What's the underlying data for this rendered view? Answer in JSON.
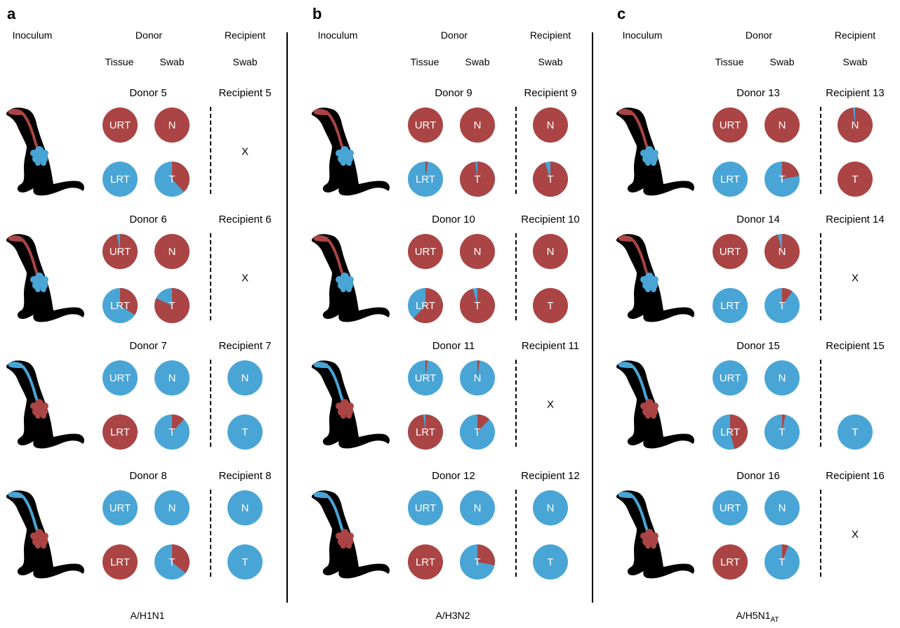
{
  "colors": {
    "red": "#ab4444",
    "blue": "#49a5d5"
  },
  "column_headers": {
    "inoculum": "Inoculum",
    "donor": "Donor",
    "recipient": "Recipient",
    "tissue": "Tissue",
    "swab": "Swab",
    "recipient_swab": "Swab"
  },
  "panels": [
    {
      "letter": "a",
      "virus": "A/H1N1",
      "virus_sub": "",
      "rows": [
        {
          "donor": "Donor 5",
          "recipient": "Recipient 5",
          "inoculum_color": "red",
          "lung_color": "blue",
          "urt": {
            "label": "URT",
            "red": 1.0
          },
          "n": {
            "label": "N",
            "red": 1.0
          },
          "lrt": {
            "label": "LRT",
            "red": 0.0
          },
          "t": {
            "label": "T",
            "red": 0.38
          },
          "rec_n": null,
          "rec_t": null,
          "rec_x": "X"
        },
        {
          "donor": "Donor 6",
          "recipient": "Recipient 6",
          "inoculum_color": "red",
          "lung_color": "blue",
          "urt": {
            "label": "URT",
            "red": 0.97
          },
          "n": {
            "label": "N",
            "red": 1.0
          },
          "lrt": {
            "label": "LRT",
            "red": 0.34
          },
          "t": {
            "label": "T",
            "red": 0.82
          },
          "rec_n": null,
          "rec_t": null,
          "rec_x": "X"
        },
        {
          "donor": "Donor 7",
          "recipient": "Recipient 7",
          "inoculum_color": "blue",
          "lung_color": "red",
          "urt": {
            "label": "URT",
            "red": 0.0
          },
          "n": {
            "label": "N",
            "red": 0.0
          },
          "lrt": {
            "label": "LRT",
            "red": 1.0
          },
          "t": {
            "label": "T",
            "red": 0.12
          },
          "rec_n": {
            "label": "N",
            "red": 0.0
          },
          "rec_t": {
            "label": "T",
            "red": 0.0
          },
          "rec_x": ""
        },
        {
          "donor": "Donor 8",
          "recipient": "Recipient 8",
          "inoculum_color": "blue",
          "lung_color": "red",
          "urt": {
            "label": "URT",
            "red": 0.0
          },
          "n": {
            "label": "N",
            "red": 0.0
          },
          "lrt": {
            "label": "LRT",
            "red": 1.0
          },
          "t": {
            "label": "T",
            "red": 0.36
          },
          "rec_n": {
            "label": "N",
            "red": 0.0
          },
          "rec_t": {
            "label": "T",
            "red": 0.0
          },
          "rec_x": ""
        }
      ]
    },
    {
      "letter": "b",
      "virus": "A/H3N2",
      "virus_sub": "",
      "rows": [
        {
          "donor": "Donor 9",
          "recipient": "Recipient 9",
          "inoculum_color": "red",
          "lung_color": "blue",
          "urt": {
            "label": "URT",
            "red": 1.0
          },
          "n": {
            "label": "N",
            "red": 1.0
          },
          "lrt": {
            "label": "LRT",
            "red": 0.02
          },
          "t": {
            "label": "T",
            "red": 0.98
          },
          "rec_n": {
            "label": "N",
            "red": 1.0
          },
          "rec_t": {
            "label": "T",
            "red": 0.95
          },
          "rec_x": ""
        },
        {
          "donor": "Donor 10",
          "recipient": "Recipient 10",
          "inoculum_color": "red",
          "lung_color": "blue",
          "urt": {
            "label": "URT",
            "red": 1.0
          },
          "n": {
            "label": "N",
            "red": 1.0
          },
          "lrt": {
            "label": "LRT",
            "red": 0.62
          },
          "t": {
            "label": "T",
            "red": 0.96
          },
          "rec_n": {
            "label": "N",
            "red": 1.0
          },
          "rec_t": {
            "label": "T",
            "red": 1.0
          },
          "rec_x": ""
        },
        {
          "donor": "Donor 11",
          "recipient": "Recipient 11",
          "inoculum_color": "blue",
          "lung_color": "red",
          "urt": {
            "label": "URT",
            "red": 0.02
          },
          "n": {
            "label": "N",
            "red": 0.02
          },
          "lrt": {
            "label": "LRT",
            "red": 0.98
          },
          "t": {
            "label": "T",
            "red": 0.12
          },
          "rec_n": null,
          "rec_t": null,
          "rec_x": "X"
        },
        {
          "donor": "Donor 12",
          "recipient": "Recipient 12",
          "inoculum_color": "blue",
          "lung_color": "red",
          "urt": {
            "label": "URT",
            "red": 0.0
          },
          "n": {
            "label": "N",
            "red": 0.0
          },
          "lrt": {
            "label": "LRT",
            "red": 1.0
          },
          "t": {
            "label": "T",
            "red": 0.28
          },
          "rec_n": {
            "label": "N",
            "red": 0.0
          },
          "rec_t": {
            "label": "T",
            "red": 0.0
          },
          "rec_x": ""
        }
      ]
    },
    {
      "letter": "c",
      "virus": "A/H5N1",
      "virus_sub": "AT",
      "rows": [
        {
          "donor": "Donor 13",
          "recipient": "Recipient 13",
          "inoculum_color": "red",
          "lung_color": "blue",
          "urt": {
            "label": "URT",
            "red": 1.0
          },
          "n": {
            "label": "N",
            "red": 1.0
          },
          "lrt": {
            "label": "LRT",
            "red": 0.0
          },
          "t": {
            "label": "T",
            "red": 0.22
          },
          "rec_n": {
            "label": "N",
            "red": 0.98
          },
          "rec_t": {
            "label": "T",
            "red": 1.0
          },
          "rec_x": ""
        },
        {
          "donor": "Donor 14",
          "recipient": "Recipient 14",
          "inoculum_color": "red",
          "lung_color": "blue",
          "urt": {
            "label": "URT",
            "red": 1.0
          },
          "n": {
            "label": "N",
            "red": 0.96
          },
          "lrt": {
            "label": "LRT",
            "red": 0.0
          },
          "t": {
            "label": "T",
            "red": 0.1
          },
          "rec_n": null,
          "rec_t": null,
          "rec_x": "X"
        },
        {
          "donor": "Donor 15",
          "recipient": "Recipient 15",
          "inoculum_color": "blue",
          "lung_color": "red",
          "urt": {
            "label": "URT",
            "red": 0.0
          },
          "n": {
            "label": "N",
            "red": 0.0
          },
          "lrt": {
            "label": "LRT",
            "red": 0.46
          },
          "t": {
            "label": "T",
            "red": 0.03
          },
          "rec_n": null,
          "rec_t": {
            "label": "T",
            "red": 0.0
          },
          "rec_x": ""
        },
        {
          "donor": "Donor 16",
          "recipient": "Recipient 16",
          "inoculum_color": "blue",
          "lung_color": "red",
          "urt": {
            "label": "URT",
            "red": 0.0
          },
          "n": {
            "label": "N",
            "red": 0.0
          },
          "lrt": {
            "label": "LRT",
            "red": 1.0
          },
          "t": {
            "label": "T",
            "red": 0.06
          },
          "rec_n": null,
          "rec_t": null,
          "rec_x": "X"
        }
      ]
    }
  ]
}
